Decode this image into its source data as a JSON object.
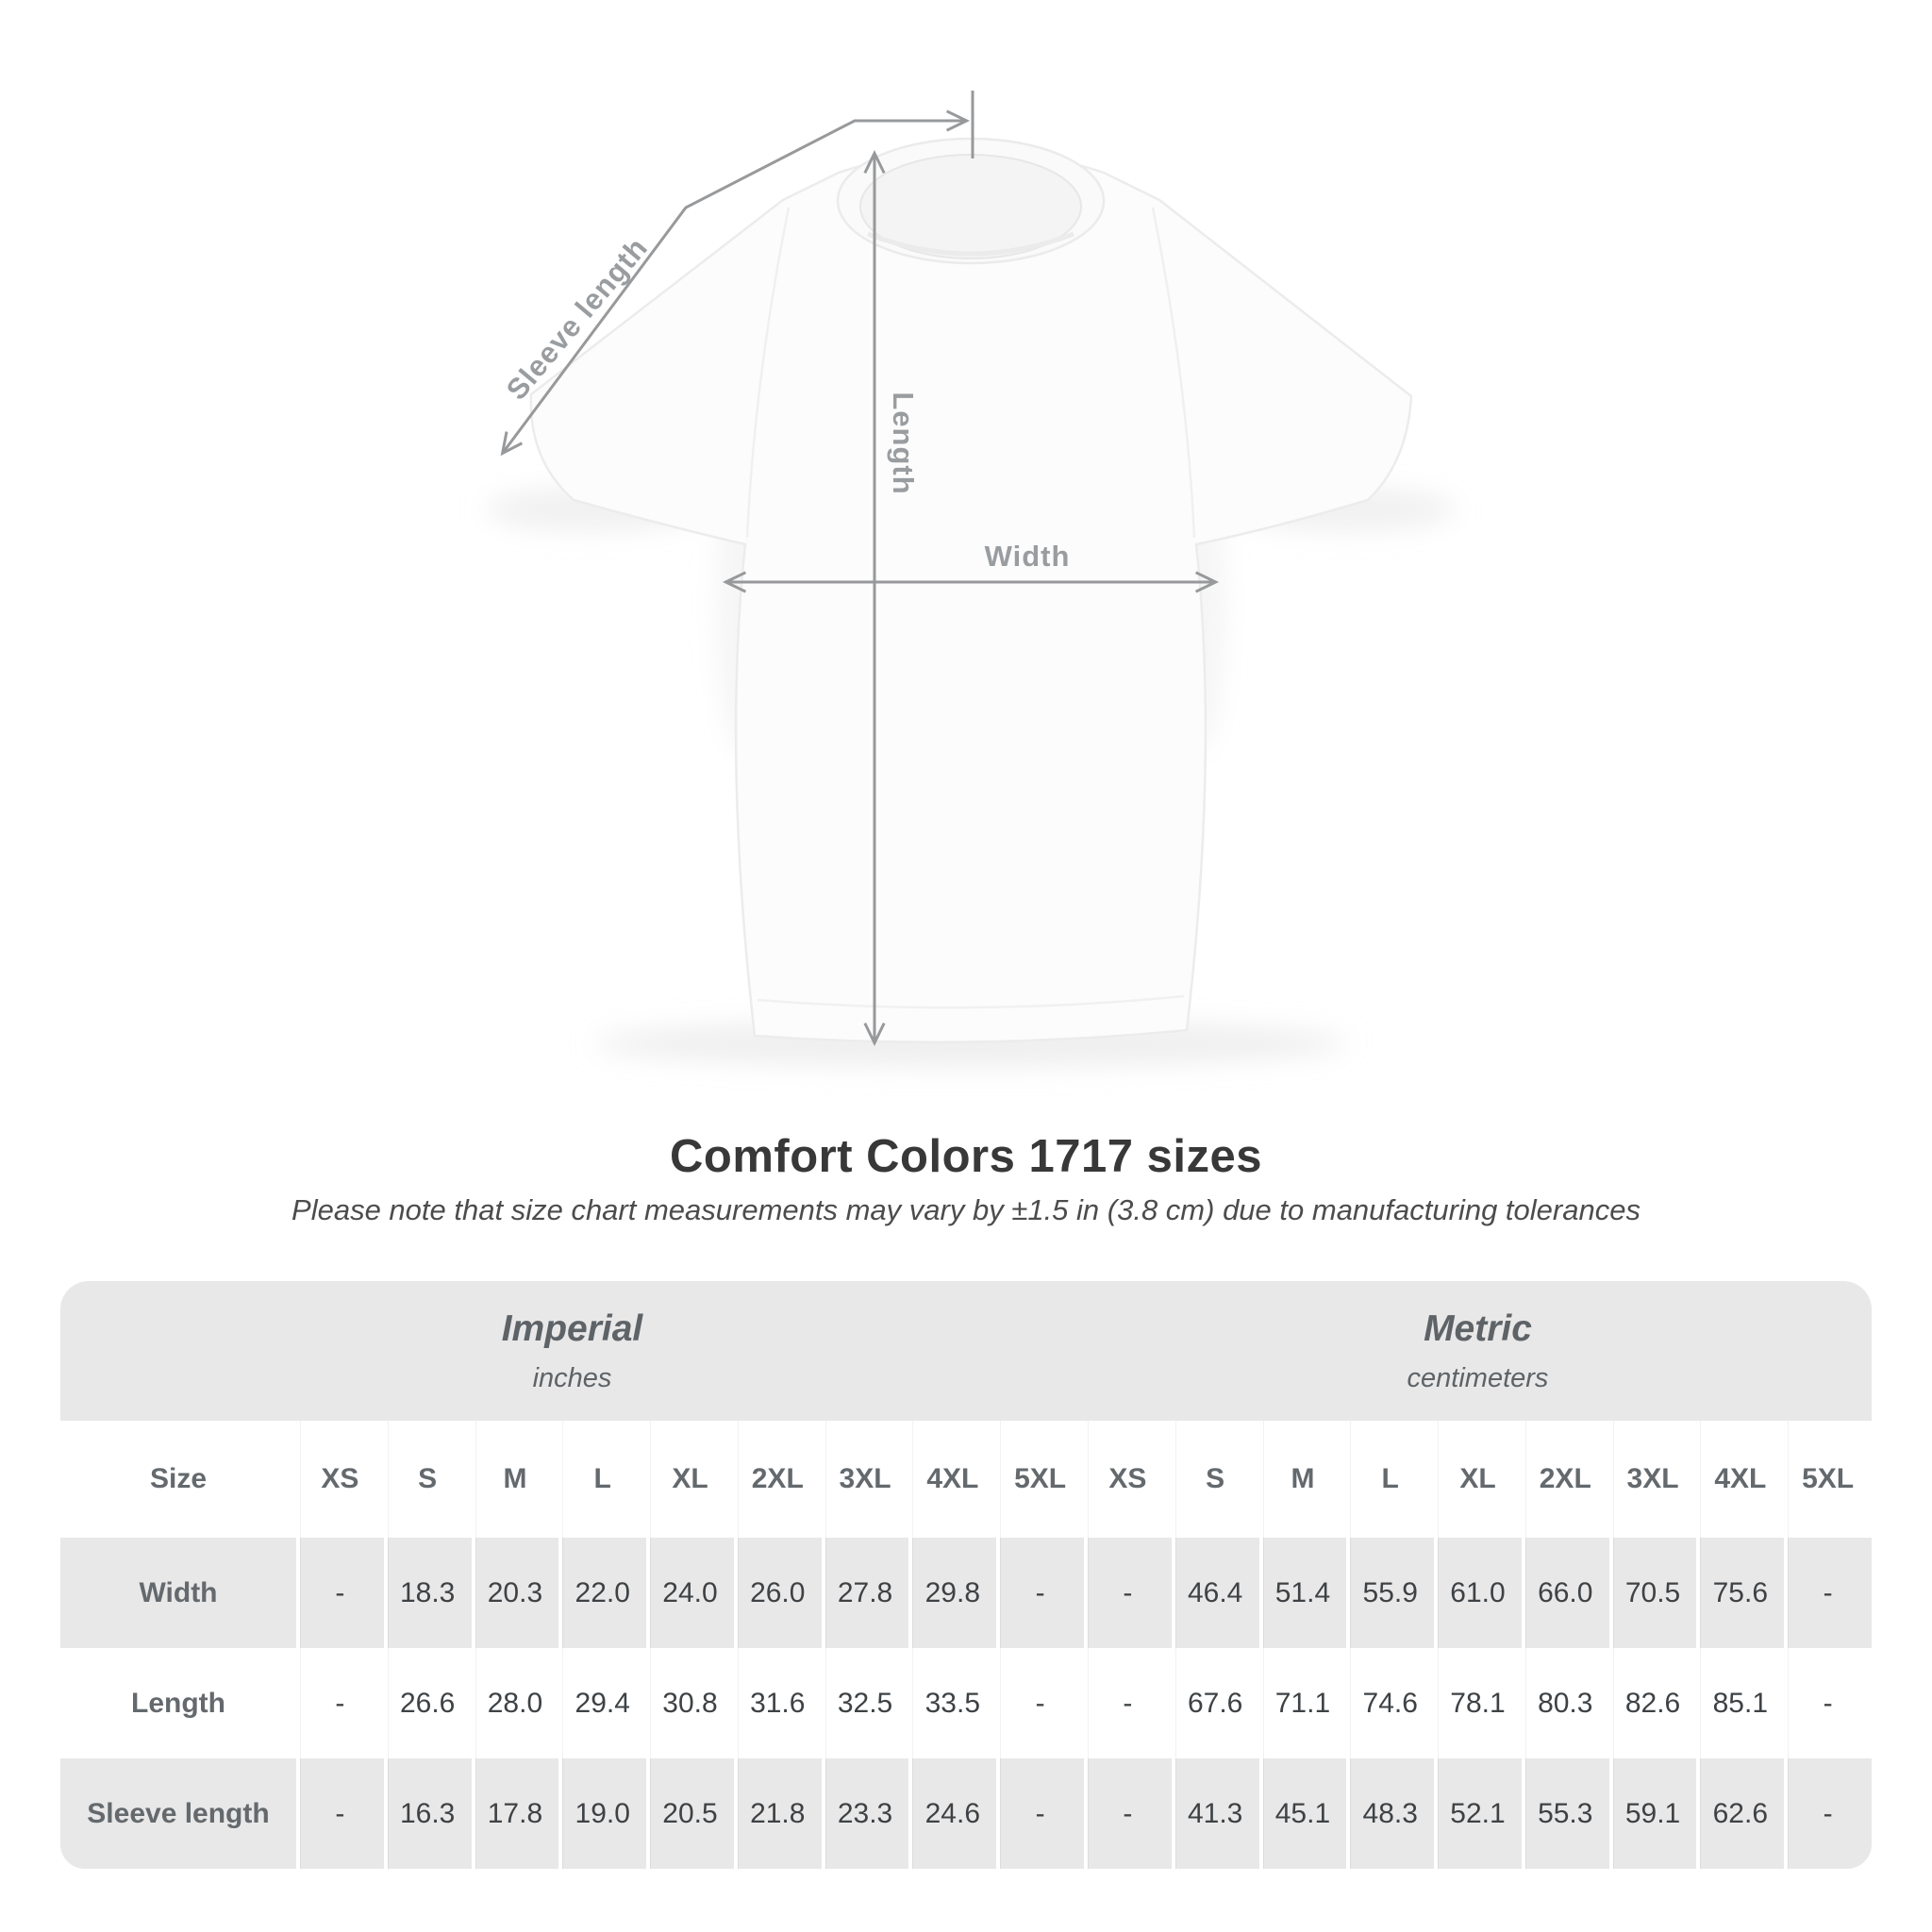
{
  "title": "Comfort Colors 1717 sizes",
  "subtitle": "Please note that size chart measurements may vary by ±1.5 in (3.8 cm) due to manufacturing tolerances",
  "diagram": {
    "labels": {
      "sleeve": "Sleeve length",
      "length": "Length",
      "width": "Width"
    },
    "line_color": "#97999b",
    "label_color": "#9a9da0"
  },
  "colors": {
    "table_band_gray": "#e9e8e8",
    "value_text": "#3e4245",
    "label_text": "#64696d",
    "title_text": "#383838"
  },
  "table": {
    "size_header_label": "Size",
    "unit_groups": [
      {
        "label": "Imperial",
        "sublabel": "inches"
      },
      {
        "label": "Metric",
        "sublabel": "centimeters"
      }
    ],
    "sizes": [
      "XS",
      "S",
      "M",
      "L",
      "XL",
      "2XL",
      "3XL",
      "4XL",
      "5XL"
    ],
    "rows": [
      {
        "label": "Width",
        "imperial": [
          "-",
          "18.3",
          "20.3",
          "22.0",
          "24.0",
          "26.0",
          "27.8",
          "29.8",
          "-"
        ],
        "metric": [
          "-",
          "46.4",
          "51.4",
          "55.9",
          "61.0",
          "66.0",
          "70.5",
          "75.6",
          "-"
        ]
      },
      {
        "label": "Length",
        "imperial": [
          "-",
          "26.6",
          "28.0",
          "29.4",
          "30.8",
          "31.6",
          "32.5",
          "33.5",
          "-"
        ],
        "metric": [
          "-",
          "67.6",
          "71.1",
          "74.6",
          "78.1",
          "80.3",
          "82.6",
          "85.1",
          "-"
        ]
      },
      {
        "label": "Sleeve length",
        "imperial": [
          "-",
          "16.3",
          "17.8",
          "19.0",
          "20.5",
          "21.8",
          "23.3",
          "24.6",
          "-"
        ],
        "metric": [
          "-",
          "41.3",
          "45.1",
          "48.3",
          "52.1",
          "55.3",
          "59.1",
          "62.6",
          "-"
        ]
      }
    ]
  }
}
